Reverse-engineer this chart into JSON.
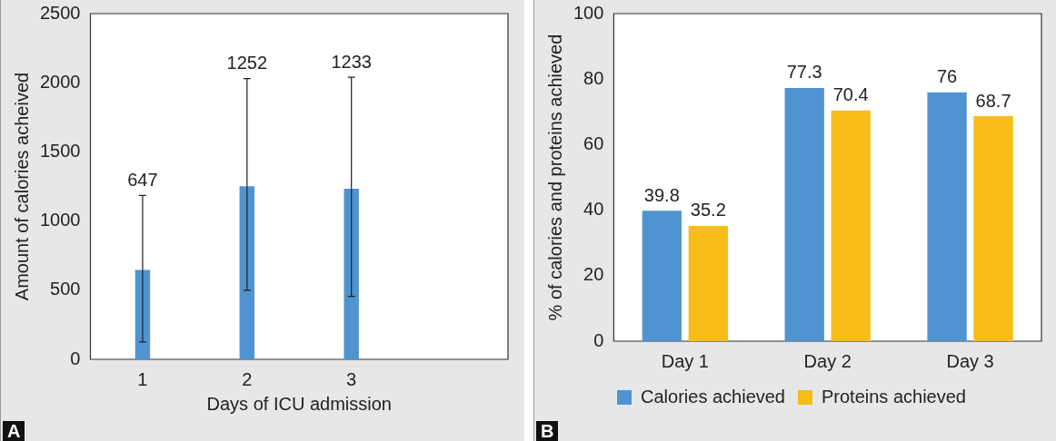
{
  "chart_data": [
    {
      "type": "bar",
      "xlabel": "Days of ICU admission",
      "ylabel": "Amount of calories acheived",
      "categories": [
        "1",
        "2",
        "3",
        null
      ],
      "values": [
        647,
        1252,
        1233,
        null
      ],
      "color": "#4f94d1",
      "errors": [
        [
          125,
          1185
        ],
        [
          500,
          2030
        ],
        [
          455,
          2040
        ],
        null
      ],
      "ylim": [
        0,
        2500
      ],
      "yticks": [
        0,
        500,
        1000,
        1500,
        2000,
        2500
      ],
      "annotations": [
        {
          "text": "647",
          "x": "1",
          "y": 1185
        },
        {
          "text": "1252",
          "x": "2",
          "y": 2030
        },
        {
          "text": "1233",
          "x": "3",
          "y": 2040
        },
        "A"
      ]
    },
    {
      "type": "bar",
      "ylabel": "% of calories and proteins achieved",
      "categories": [
        "Day 1",
        "Day 2",
        "Day 3"
      ],
      "series": [
        {
          "name": "Calories achieved",
          "color": "#4f94d1",
          "values": [
            39.8,
            77.3,
            76
          ]
        },
        {
          "name": "Proteins achieved",
          "color": "#f8bc19",
          "values": [
            35.2,
            70.4,
            68.7
          ]
        }
      ],
      "ylim": [
        0,
        100
      ],
      "yticks": [
        0,
        20,
        40,
        60,
        80,
        100
      ],
      "data_labels": true,
      "legend": "bottom",
      "annotations": [
        "B"
      ]
    }
  ]
}
